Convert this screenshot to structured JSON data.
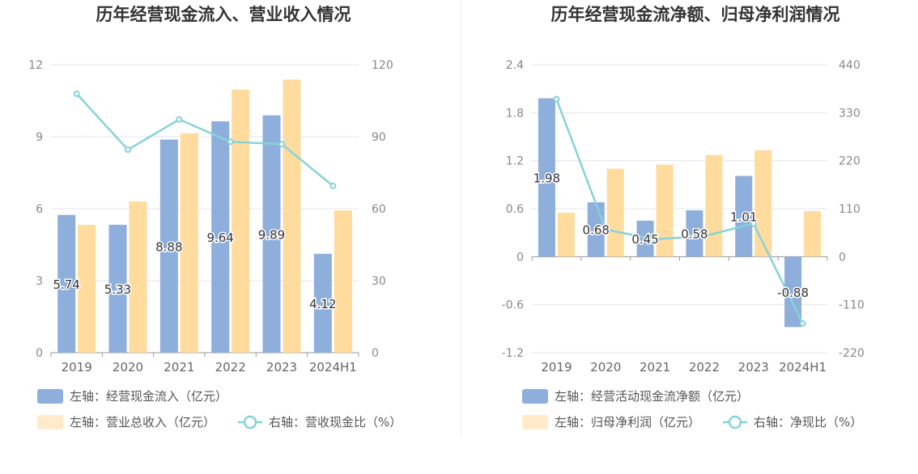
{
  "colors": {
    "inflow": "#8eaedb",
    "revenue": "#ffdb9e",
    "ratio": "#86d3d8",
    "grid": "#e3e6ee",
    "axis": "#999999"
  },
  "chart_data": [
    {
      "type": "bar",
      "title": "历年经营现金流入、营业收入情况",
      "categories": [
        "2019",
        "2020",
        "2021",
        "2022",
        "2023",
        "2024H1"
      ],
      "y_left": {
        "ticks": [
          "0",
          "3",
          "6",
          "9",
          "12"
        ],
        "ylim": [
          0,
          12
        ]
      },
      "y_right": {
        "ticks": [
          "0",
          "30",
          "60",
          "90",
          "120"
        ],
        "ylim": [
          0,
          120
        ]
      },
      "series": [
        {
          "name": "左轴：经营现金流入（亿元）",
          "type": "bar",
          "axis": "left",
          "color": "#8eaedb",
          "values": [
            5.74,
            5.33,
            8.88,
            9.64,
            9.89,
            4.12
          ],
          "labels": [
            "5.74",
            "5.33",
            "8.88",
            "9.64",
            "9.89",
            "4.12"
          ]
        },
        {
          "name": "左轴：营业总收入（亿元）",
          "type": "bar",
          "axis": "left",
          "color": "#ffdb9e",
          "values": [
            5.32,
            6.3,
            9.14,
            10.96,
            11.38,
            5.93
          ]
        },
        {
          "name": "右轴：营收现金比（%）",
          "type": "line",
          "axis": "right",
          "color": "#86d3d8",
          "values": [
            107.9,
            84.6,
            97.2,
            87.9,
            86.9,
            69.5
          ]
        }
      ]
    },
    {
      "type": "bar",
      "title": "历年经营现金流净额、归母净利润情况",
      "categories": [
        "2019",
        "2020",
        "2021",
        "2022",
        "2023",
        "2024H1"
      ],
      "y_left": {
        "ticks": [
          "-1.2",
          "-0.6",
          "0",
          "0.6",
          "1.2",
          "1.8",
          "2.4"
        ],
        "ylim": [
          -1.2,
          2.4
        ]
      },
      "y_right": {
        "ticks": [
          "-220",
          "-110",
          "0",
          "110",
          "220",
          "330",
          "440"
        ],
        "ylim": [
          -220,
          440
        ]
      },
      "series": [
        {
          "name": "左轴：经营活动现金流净额（亿元）",
          "type": "bar",
          "axis": "left",
          "color": "#8eaedb",
          "values": [
            1.98,
            0.68,
            0.45,
            0.58,
            1.01,
            -0.88
          ],
          "labels": [
            "1.98",
            "0.68",
            "0.45",
            "0.58",
            "1.01",
            "-0.88"
          ]
        },
        {
          "name": "左轴：归母净利润（亿元）",
          "type": "bar",
          "axis": "left",
          "color": "#ffdb9e",
          "values": [
            0.55,
            1.1,
            1.15,
            1.27,
            1.33,
            0.57
          ]
        },
        {
          "name": "右轴：净现比（%）",
          "type": "line",
          "axis": "right",
          "color": "#86d3d8",
          "values": [
            361,
            62,
            40,
            47,
            76,
            -153
          ]
        }
      ]
    }
  ]
}
